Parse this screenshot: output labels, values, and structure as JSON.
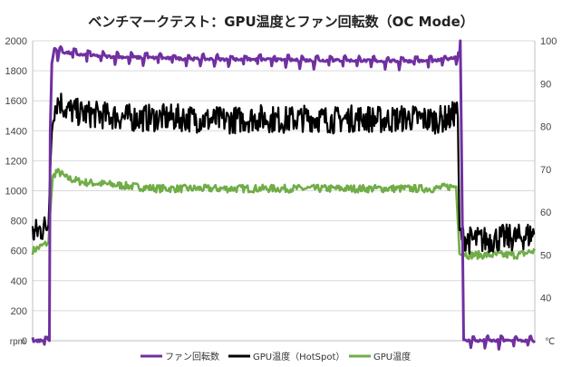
{
  "chart_data": {
    "type": "line",
    "title": "ベンチマークテスト：GPU温度とファン回転数（OC Mode）",
    "left_axis": {
      "unit": "rpm",
      "range": [
        0,
        2000
      ],
      "ticks": [
        0,
        200,
        400,
        600,
        800,
        1000,
        1200,
        1400,
        1600,
        1800,
        2000
      ],
      "tick_labels": [
        "0",
        "200",
        "400",
        "600",
        "800",
        "1000",
        "1200",
        "1400",
        "1600",
        "1800",
        "2000"
      ]
    },
    "right_axis": {
      "unit": "℃",
      "range": [
        30,
        100
      ],
      "ticks": [
        40,
        50,
        60,
        70,
        80,
        90,
        100
      ],
      "tick_labels": [
        "40",
        "50",
        "60",
        "70",
        "80",
        "90",
        "100"
      ]
    },
    "grid": true,
    "legend_position": "bottom",
    "x_range": [
      0,
      600
    ],
    "series": [
      {
        "name": "ファン回転数",
        "axis": "left",
        "color": "#7030a0",
        "x": [
          0,
          20,
          21,
          23,
          26,
          30,
          60,
          90,
          120,
          150,
          180,
          210,
          240,
          270,
          300,
          330,
          360,
          390,
          420,
          450,
          480,
          500,
          510,
          511,
          515,
          520,
          600
        ],
        "values": [
          0,
          0,
          1400,
          1850,
          1950,
          1930,
          1905,
          1895,
          1890,
          1885,
          1880,
          1878,
          1875,
          1875,
          1872,
          1870,
          1870,
          1868,
          1865,
          1865,
          1865,
          1885,
          1900,
          2000,
          0,
          0,
          0
        ]
      },
      {
        "name": "GPU温度（HotSpot）",
        "axis": "right",
        "color": "#000000",
        "x": [
          0,
          5,
          10,
          15,
          19,
          21,
          24,
          28,
          32,
          36,
          40,
          60,
          90,
          120,
          150,
          180,
          210,
          240,
          270,
          300,
          330,
          360,
          390,
          420,
          450,
          480,
          500,
          506,
          508,
          510,
          520,
          540,
          560,
          580,
          600
        ],
        "values": [
          55,
          55.5,
          56,
          56.5,
          57,
          70,
          83,
          85.5,
          86,
          85,
          84,
          83,
          82.5,
          82,
          82,
          82,
          81.5,
          81.5,
          82,
          81.5,
          82,
          81.5,
          82,
          81.5,
          82,
          81.5,
          82,
          84,
          82,
          55,
          53.5,
          53.5,
          54,
          54,
          55
        ]
      },
      {
        "name": "GPU温度",
        "axis": "right",
        "color": "#70ad47",
        "x": [
          0,
          5,
          10,
          15,
          19,
          21,
          24,
          28,
          34,
          40,
          60,
          90,
          120,
          150,
          180,
          210,
          240,
          270,
          300,
          330,
          360,
          390,
          420,
          450,
          480,
          500,
          506,
          508,
          510,
          520,
          540,
          560,
          580,
          600
        ],
        "values": [
          51,
          51.5,
          52,
          52.5,
          53,
          60,
          68,
          69.5,
          69,
          68,
          67,
          66.5,
          66,
          65.5,
          65.5,
          65.5,
          65.5,
          65.5,
          65.5,
          65.5,
          65.5,
          65.5,
          65.5,
          65.5,
          65.5,
          66,
          66,
          58,
          51,
          50,
          50,
          50,
          50,
          51
        ]
      }
    ]
  }
}
